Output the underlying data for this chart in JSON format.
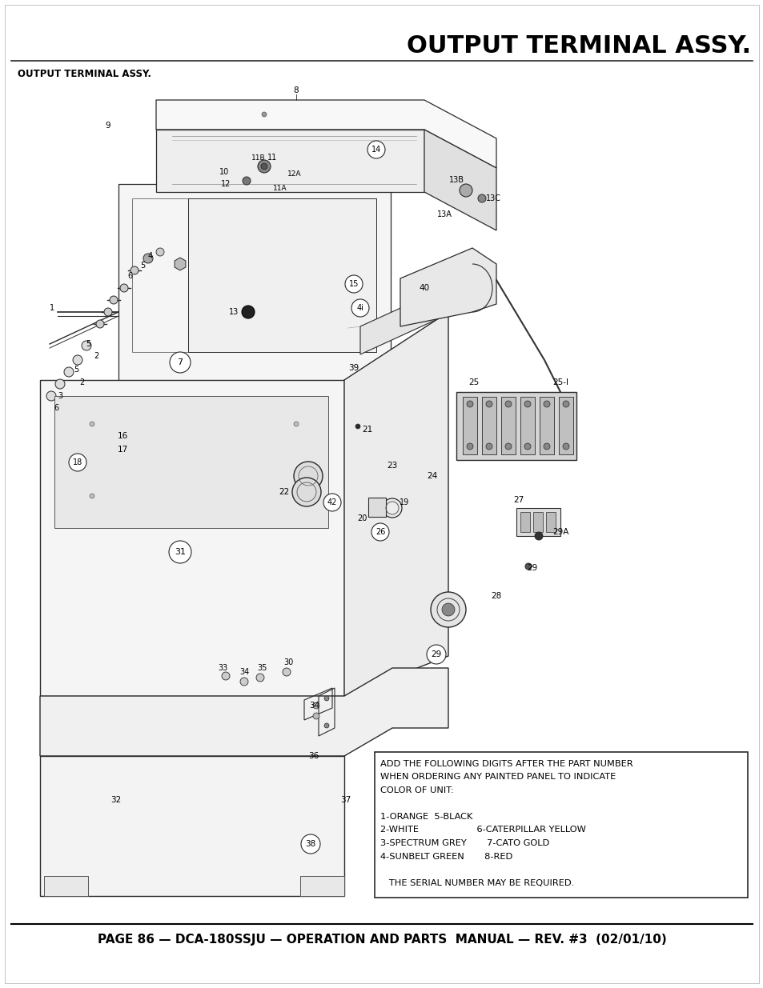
{
  "title": "OUTPUT TERMINAL ASSY.",
  "subtitle": "OUTPUT TERMINAL ASSY.",
  "footer_text": "PAGE 86 — DCA-180SSJU — OPERATION AND PARTS  MANUAL — REV. #3  (02/01/10)",
  "note_lines": [
    "ADD THE FOLLOWING DIGITS AFTER THE PART NUMBER",
    "WHEN ORDERING ANY PAINTED PANEL TO INDICATE",
    "COLOR OF UNIT:",
    "",
    "1-ORANGE  5-BLACK",
    "2-WHITE                    6-CATERPILLAR YELLOW",
    "3-SPECTRUM GREY       7-CATO GOLD",
    "4-SUNBELT GREEN       8-RED",
    "",
    "   THE SERIAL NUMBER MAY BE REQUIRED."
  ],
  "bg_color": "#ffffff",
  "line_color": "#2a2a2a",
  "title_fontsize": 22,
  "footer_fontsize": 11,
  "note_fontsize": 8.2
}
